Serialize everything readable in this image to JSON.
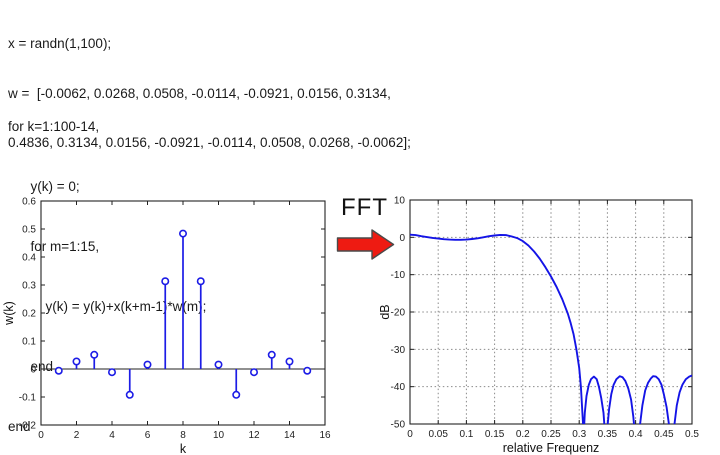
{
  "code": {
    "lines_top": [
      "x = randn(1,100);",
      "w =  [-0.0062, 0.0268, 0.0508, -0.0114, -0.0921, 0.0156, 0.3134,",
      "0.4836, 0.3134, 0.0156, -0.0921, -0.0114, 0.0508, 0.0268, -0.0062];"
    ],
    "lines_loop": [
      "for k=1:100-14,",
      "      y(k) = 0;",
      "      for m=1:15,",
      "          y(k) = y(k)+x(k+m-1)*w(m);",
      "      end",
      "end"
    ]
  },
  "fft": {
    "label": "FFT",
    "arrow_fill": "#ee1b12",
    "arrow_outline": "#4a4a4a"
  },
  "chart_data": [
    {
      "type": "stem",
      "title": "",
      "xlabel": "k",
      "ylabel": "w(k)",
      "xlim": [
        0,
        16
      ],
      "ylim": [
        -0.2,
        0.6
      ],
      "xtick_labels": [
        "0",
        "2",
        "4",
        "6",
        "8",
        "10",
        "12",
        "14",
        "16"
      ],
      "ytick_labels": [
        "-0.2",
        "-0.1",
        "0",
        "0.1",
        "0.2",
        "0.3",
        "0.4",
        "0.5",
        "0.6"
      ],
      "x": [
        1,
        2,
        3,
        4,
        5,
        6,
        7,
        8,
        9,
        10,
        11,
        12,
        13,
        14,
        15
      ],
      "values": [
        -0.0062,
        0.0268,
        0.0508,
        -0.0114,
        -0.0921,
        0.0156,
        0.3134,
        0.4836,
        0.3134,
        0.0156,
        -0.0921,
        -0.0114,
        0.0508,
        0.0268,
        -0.0062
      ],
      "line_color": "#1c1ce6",
      "axis_color": "#222222",
      "grid": false,
      "zero_line": true
    },
    {
      "type": "line",
      "title": "",
      "xlabel": "relative Frequenz",
      "ylabel": "dB",
      "xlim": [
        0,
        0.5
      ],
      "ylim": [
        -50,
        10
      ],
      "xtick_labels": [
        "0",
        "0.05",
        "0.1",
        "0.15",
        "0.2",
        "0.25",
        "0.3",
        "0.35",
        "0.4",
        "0.45",
        "0.5"
      ],
      "ytick_labels": [
        "-50",
        "-40",
        "-30",
        "-20",
        "-10",
        "0",
        "10"
      ],
      "x": [
        0,
        0.01,
        0.02,
        0.03,
        0.04,
        0.05,
        0.06,
        0.07,
        0.08,
        0.09,
        0.1,
        0.11,
        0.12,
        0.13,
        0.14,
        0.15,
        0.16,
        0.17,
        0.18,
        0.19,
        0.2,
        0.21,
        0.22,
        0.23,
        0.24,
        0.25,
        0.26,
        0.27,
        0.28,
        0.285,
        0.29,
        0.295,
        0.3,
        0.303,
        0.306,
        0.308,
        0.31,
        0.313,
        0.317,
        0.321,
        0.326,
        0.331,
        0.335,
        0.339,
        0.343,
        0.346,
        0.348,
        0.35,
        0.353,
        0.357,
        0.361,
        0.366,
        0.372,
        0.377,
        0.382,
        0.387,
        0.392,
        0.396,
        0.399,
        0.402,
        0.405,
        0.408,
        0.412,
        0.417,
        0.422,
        0.427,
        0.431,
        0.436,
        0.441,
        0.446,
        0.45,
        0.455,
        0.459,
        0.462,
        0.466,
        0.469,
        0.473,
        0.478,
        0.483,
        0.489,
        0.495,
        0.5
      ],
      "y": [
        0.7,
        0.6,
        0.3,
        0.05,
        -0.15,
        -0.35,
        -0.5,
        -0.6,
        -0.65,
        -0.65,
        -0.6,
        -0.45,
        -0.25,
        0.0,
        0.3,
        0.5,
        0.65,
        0.6,
        0.25,
        -0.2,
        -1.0,
        -2.2,
        -3.8,
        -5.7,
        -8.0,
        -10.5,
        -13.3,
        -16.6,
        -20.5,
        -23.0,
        -26.0,
        -30.0,
        -35.0,
        -40.0,
        -48.0,
        -53.0,
        -47.0,
        -42.5,
        -39.5,
        -38.0,
        -37.3,
        -38.0,
        -40.0,
        -43.0,
        -47.0,
        -53.0,
        -53.0,
        -51.0,
        -46.0,
        -42.0,
        -39.5,
        -38.0,
        -37.2,
        -37.5,
        -38.5,
        -40.5,
        -43.5,
        -48.0,
        -53.0,
        -56.0,
        -56.0,
        -50.0,
        -45.0,
        -41.0,
        -39.0,
        -37.8,
        -37.2,
        -37.3,
        -38.0,
        -39.5,
        -42.0,
        -45.5,
        -50.0,
        -55.0,
        -55.0,
        -50.0,
        -45.0,
        -41.5,
        -39.5,
        -38.0,
        -37.3,
        -37.0
      ],
      "line_color": "#1414e6",
      "axis_color": "#222222",
      "grid": true,
      "grid_color": "#8a8a8a"
    }
  ]
}
